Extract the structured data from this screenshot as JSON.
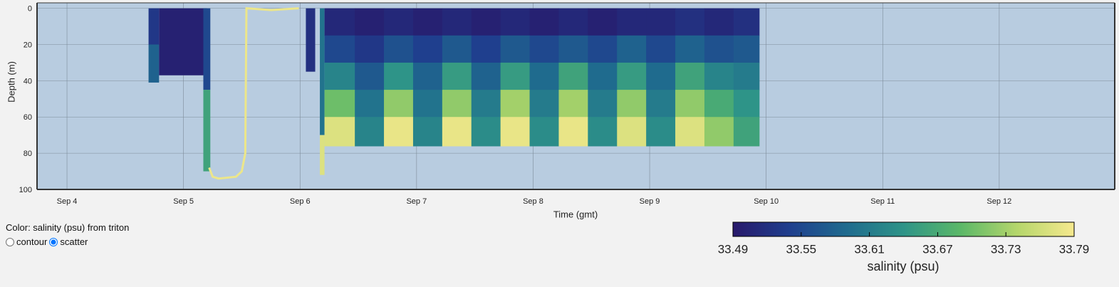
{
  "chart_data": {
    "type": "scatter",
    "xlabel": "Time (gmt)",
    "ylabel": "Depth (m)",
    "xlim": [
      3.743,
      12.991
    ],
    "xticks": [
      {
        "value": 4,
        "label": "Sep 4"
      },
      {
        "value": 5,
        "label": "Sep 5"
      },
      {
        "value": 6,
        "label": "Sep 6"
      },
      {
        "value": 7,
        "label": "Sep 7"
      },
      {
        "value": 8,
        "label": "Sep 8"
      },
      {
        "value": 9,
        "label": "Sep 9"
      },
      {
        "value": 10,
        "label": "Sep 10"
      },
      {
        "value": 11,
        "label": "Sep 11"
      },
      {
        "value": 12,
        "label": "Sep 12"
      }
    ],
    "ylim": [
      100,
      -3
    ],
    "yticks": [
      0,
      20,
      40,
      60,
      80,
      100
    ],
    "grid": true,
    "cells": [
      {
        "x0": 4.7,
        "x1": 4.79,
        "top": 0,
        "bottom": 20,
        "value": 33.53
      },
      {
        "x0": 4.7,
        "x1": 4.79,
        "top": 20,
        "bottom": 41,
        "value": 33.58
      },
      {
        "x0": 4.79,
        "x1": 5.2,
        "top": 0,
        "bottom": 37,
        "value": 33.5
      },
      {
        "x0": 5.17,
        "x1": 5.23,
        "top": 0,
        "bottom": 45,
        "value": 33.55
      },
      {
        "x0": 5.17,
        "x1": 5.23,
        "top": 45,
        "bottom": 90,
        "value": 33.66
      },
      {
        "x0": 6.05,
        "x1": 6.13,
        "top": 0,
        "bottom": 35,
        "value": 33.52
      },
      {
        "x0": 6.17,
        "x1": 6.21,
        "top": 0,
        "bottom": 70,
        "value": 33.6
      },
      {
        "x0": 6.17,
        "x1": 6.21,
        "top": 70,
        "bottom": 92,
        "value": 33.77
      }
    ],
    "grid_cells": {
      "x": [
        6.21,
        6.47,
        6.72,
        6.97,
        7.22,
        7.47,
        7.72,
        7.97,
        8.22,
        8.47,
        8.72,
        8.97,
        9.22,
        9.47,
        9.72,
        9.94
      ],
      "depth": [
        0,
        15,
        30,
        45,
        60,
        76
      ],
      "values": [
        [
          33.51,
          33.5,
          33.51,
          33.5,
          33.51,
          33.5,
          33.51,
          33.5,
          33.51,
          33.5,
          33.51,
          33.51,
          33.52,
          33.51,
          33.52
        ],
        [
          33.55,
          33.53,
          33.56,
          33.54,
          33.57,
          33.54,
          33.57,
          33.55,
          33.57,
          33.55,
          33.58,
          33.55,
          33.58,
          33.56,
          33.57
        ],
        [
          33.62,
          33.57,
          33.64,
          33.58,
          33.65,
          33.58,
          33.65,
          33.59,
          33.66,
          33.59,
          33.65,
          33.59,
          33.66,
          33.62,
          33.61
        ],
        [
          33.7,
          33.6,
          33.72,
          33.6,
          33.72,
          33.61,
          33.73,
          33.61,
          33.73,
          33.61,
          33.72,
          33.61,
          33.72,
          33.67,
          33.64
        ],
        [
          33.77,
          33.62,
          33.78,
          33.62,
          33.78,
          33.63,
          33.78,
          33.63,
          33.78,
          33.63,
          33.77,
          33.63,
          33.77,
          33.72,
          33.66
        ]
      ]
    },
    "series": [
      {
        "color": "#ece68a",
        "x": [
          5.22,
          5.25,
          5.3,
          5.45,
          5.5,
          5.53,
          5.54,
          5.75,
          5.99
        ],
        "values": [
          88,
          93,
          94,
          93,
          90,
          80,
          0,
          1,
          0
        ]
      }
    ],
    "colorbar": {
      "label": "salinity (psu)",
      "lim": [
        33.49,
        33.79
      ],
      "ticks": [
        33.49,
        33.55,
        33.61,
        33.67,
        33.73,
        33.79
      ],
      "colors": [
        "#28196b",
        "#1f3f8e",
        "#1f6b8e",
        "#2e9488",
        "#5bb868",
        "#b5d66b",
        "#f6e98e"
      ]
    }
  },
  "controls": {
    "color_label": "Color: salinity (psu) from triton",
    "modes": [
      "contour",
      "scatter"
    ],
    "selected": 1
  }
}
